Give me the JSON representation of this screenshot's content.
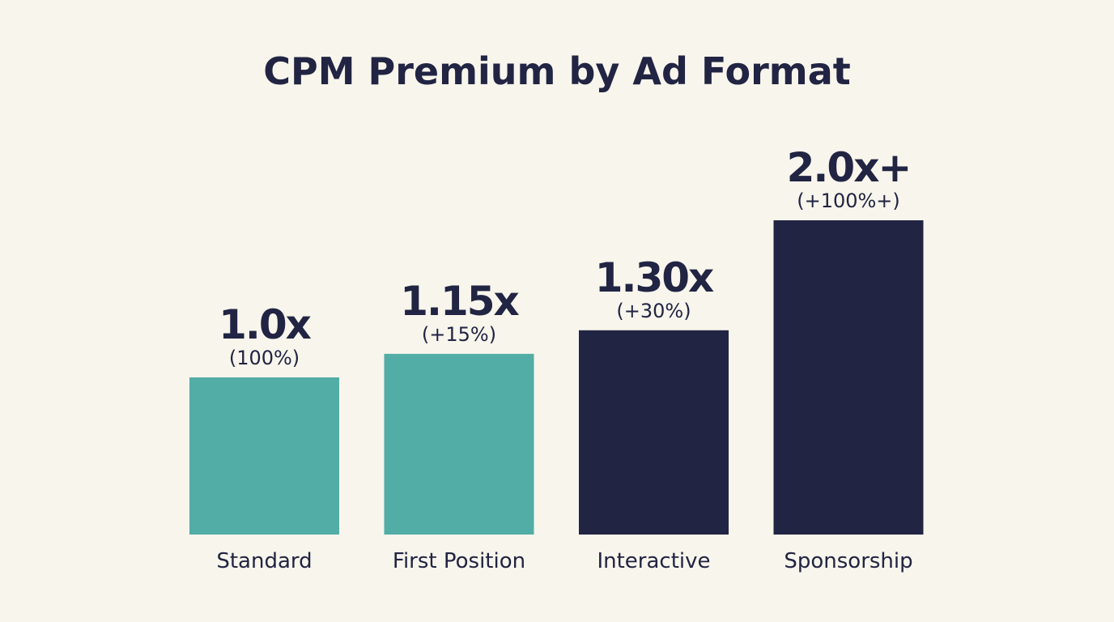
{
  "chart_data": {
    "type": "bar",
    "title": "CPM Premium by Ad Format",
    "xlabel": "",
    "ylabel": "",
    "categories": [
      "Standard",
      "First Position",
      "Interactive",
      "Sponsorship"
    ],
    "values": [
      1.0,
      1.15,
      1.3,
      2.0
    ],
    "data_labels": [
      "1.0x",
      "1.15x",
      "1.30x",
      "2.0x+"
    ],
    "sub_labels": [
      "(100%)",
      "(+15%)",
      "(+30%)",
      "(+100%+)"
    ],
    "bar_colors": [
      "#52ADA6",
      "#52ADA6",
      "#212442",
      "#212442"
    ],
    "ylim": [
      0,
      2.0
    ],
    "grid": false,
    "axes_visible": false
  },
  "colors": {
    "background": "#F8F5EC",
    "text": "#212442",
    "teal": "#52ADA6",
    "navy": "#212442"
  }
}
